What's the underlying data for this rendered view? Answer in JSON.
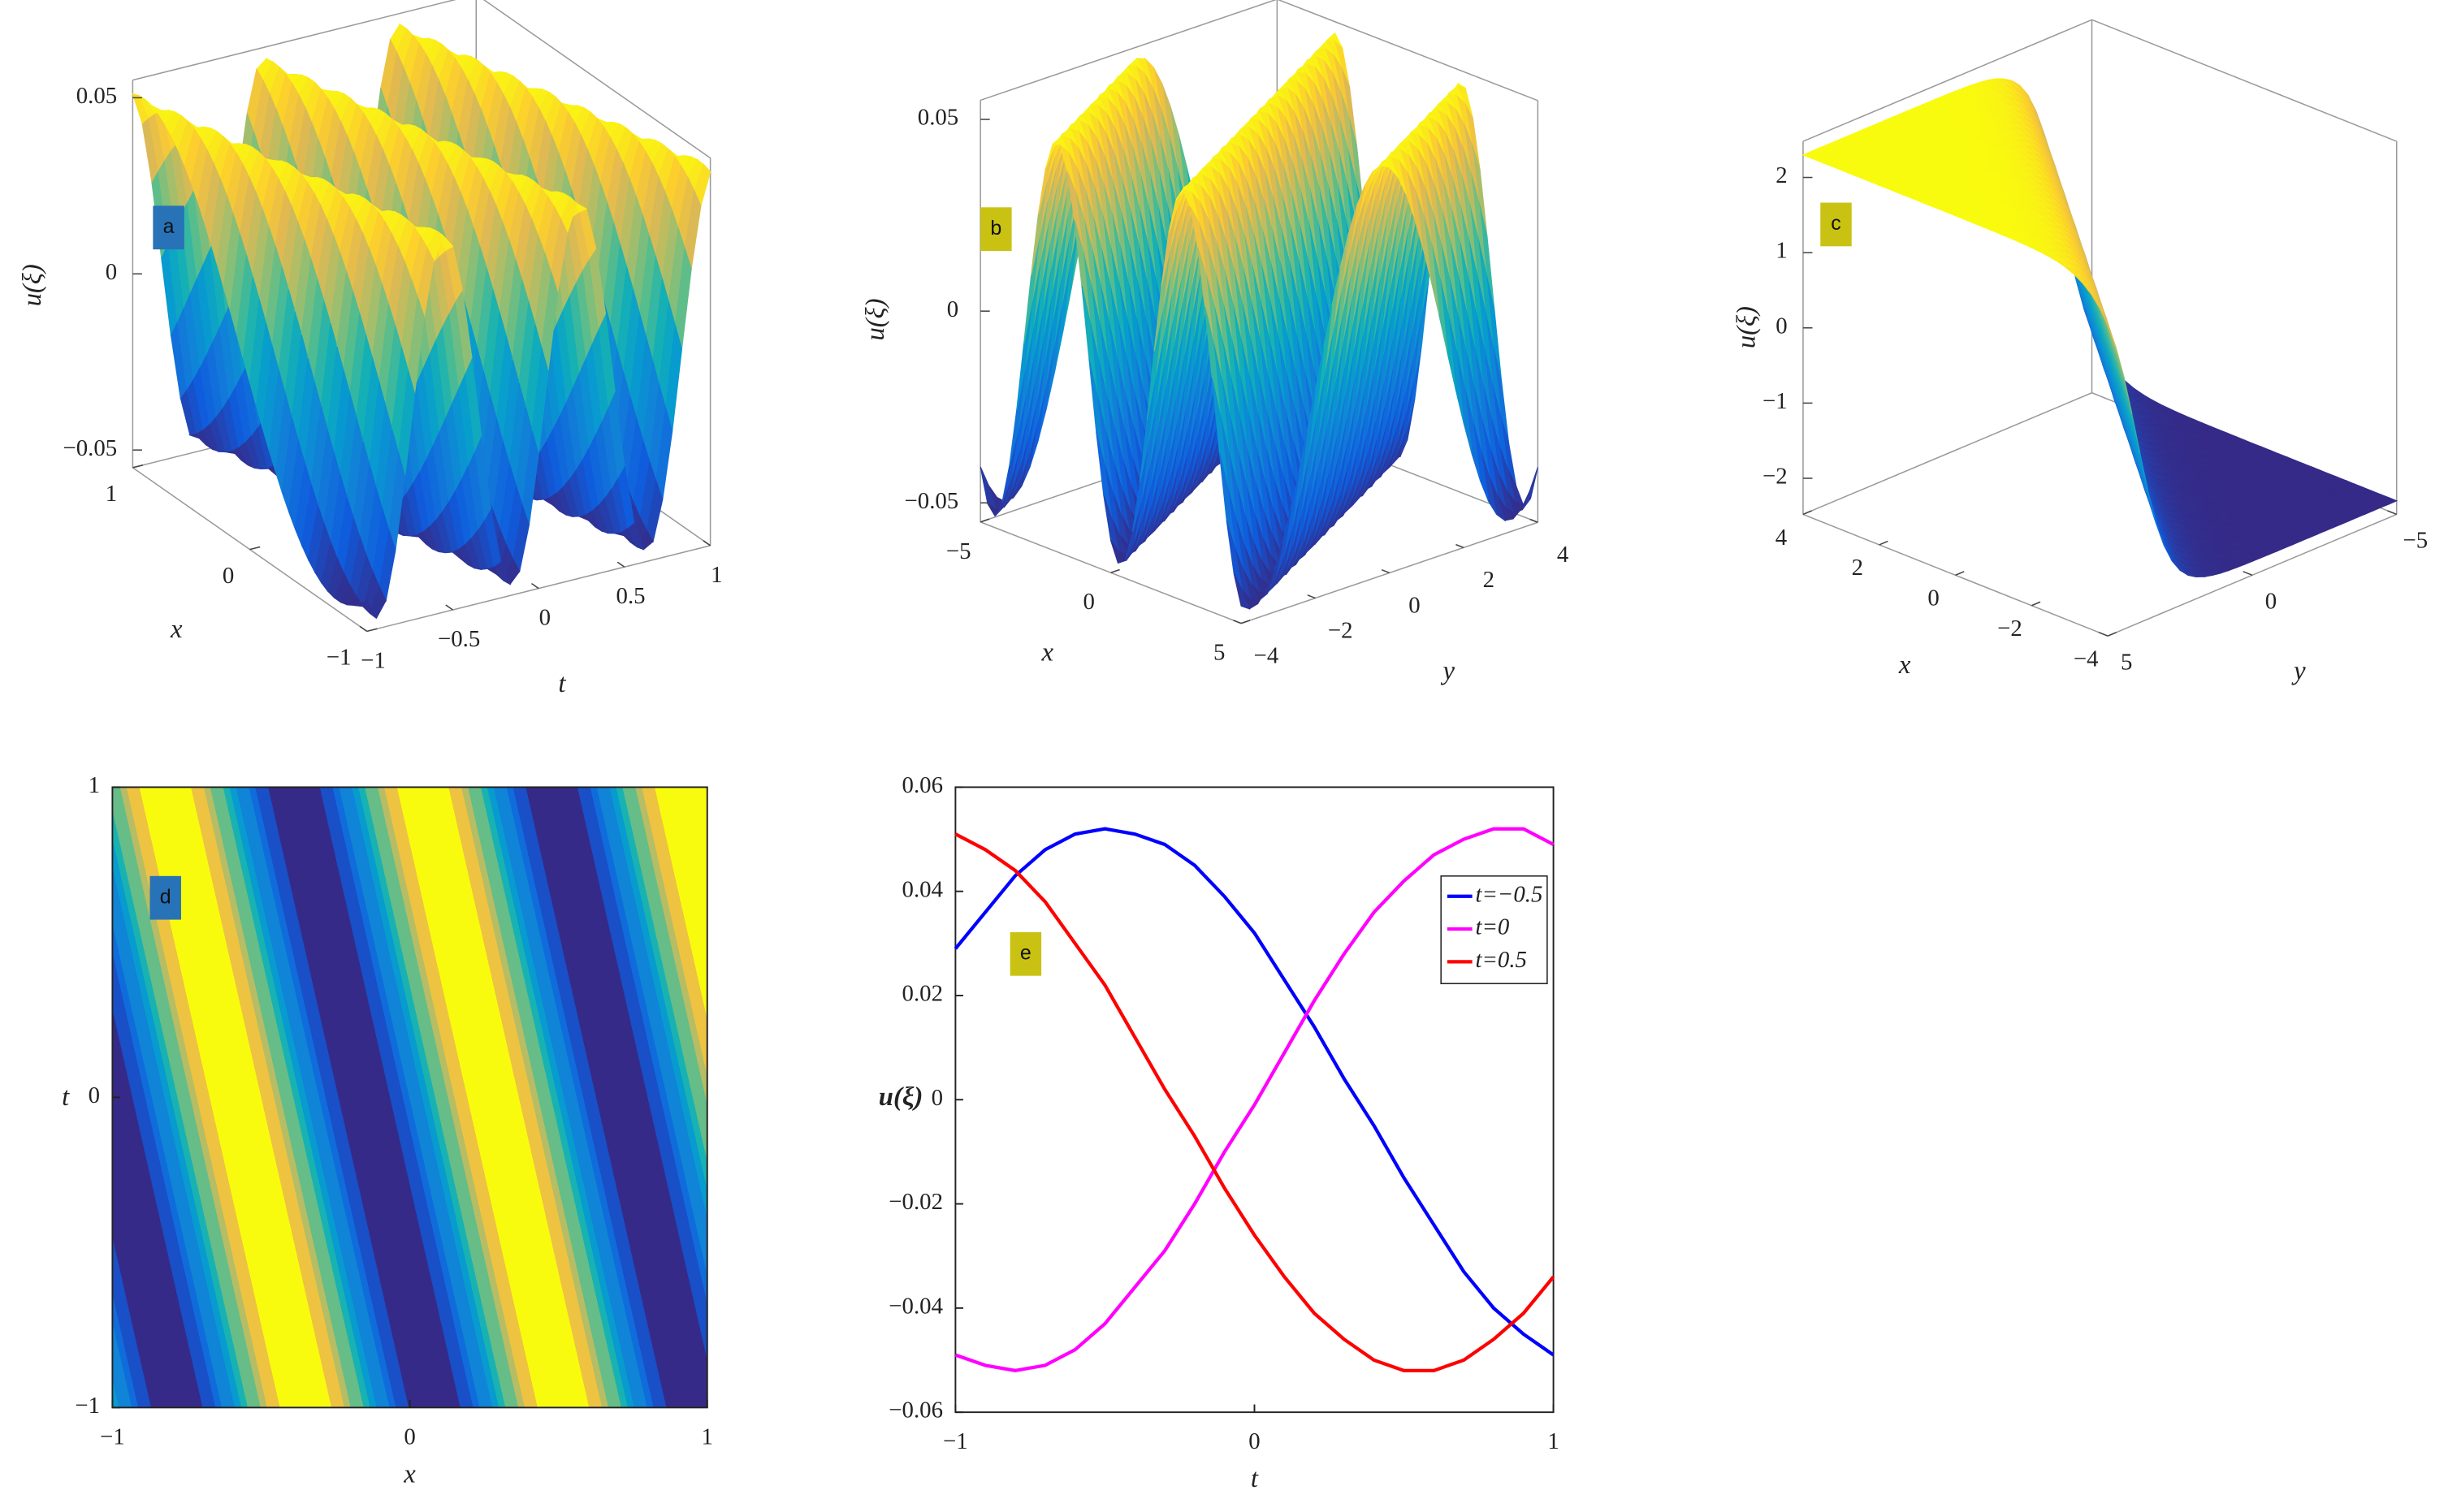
{
  "chart_data": [
    {
      "type": "surface",
      "label": "a",
      "xlabel": "x",
      "ylabel": "t",
      "zlabel": "u(ξ)",
      "xticks": [
        {
          "value": -1,
          "label": "−1"
        },
        0,
        1
      ],
      "yticks": [
        {
          "value": -1,
          "label": "−1"
        },
        {
          "value": -0.5,
          "label": "−0.5"
        },
        0,
        0.5,
        1
      ],
      "zticks": [
        {
          "value": -0.05,
          "label": "−0.05"
        },
        0,
        0.05
      ]
    },
    {
      "type": "surface",
      "label": "b",
      "xlabel": "x",
      "ylabel": "y",
      "zlabel": "u(ξ)",
      "xticks": [
        {
          "value": -5,
          "label": "−5"
        },
        0,
        5
      ],
      "yticks": [
        {
          "value": -4,
          "label": "−4"
        },
        {
          "value": -2,
          "label": "−2"
        },
        0,
        2,
        4
      ],
      "zticks": [
        {
          "value": -0.05,
          "label": "−0.05"
        },
        0,
        0.05
      ]
    },
    {
      "type": "surface",
      "label": "c",
      "xlabel": "x",
      "ylabel": "y",
      "zlabel": "u(ξ)",
      "xticks": [
        {
          "value": -4,
          "label": "−4"
        },
        {
          "value": -2,
          "label": "−2"
        },
        0,
        2,
        4
      ],
      "yticks": [
        {
          "value": -5,
          "label": "−5"
        },
        0,
        5
      ],
      "zticks": [
        {
          "value": -2,
          "label": "−2"
        },
        {
          "value": -1,
          "label": "−1"
        },
        0,
        1,
        2
      ]
    },
    {
      "type": "contour",
      "label": "d",
      "xlabel": "x",
      "ylabel": "t",
      "xlim": [
        -1,
        1
      ],
      "ylim": [
        -1,
        1
      ],
      "xticks": [
        {
          "value": -1,
          "label": "−1"
        },
        0,
        1
      ],
      "yticks": [
        {
          "value": -1,
          "label": "−1"
        },
        0,
        1
      ]
    },
    {
      "type": "line",
      "label": "e",
      "xlabel": "t",
      "ylabel": "u(ξ)",
      "xlim": [
        -1,
        1
      ],
      "ylim": [
        -0.06,
        0.06
      ],
      "xticks": [
        {
          "value": -1,
          "label": "−1"
        },
        0,
        1
      ],
      "yticks": [
        {
          "value": -0.06,
          "label": "−0.06"
        },
        {
          "value": -0.04,
          "label": "−0.04"
        },
        {
          "value": -0.02,
          "label": "−0.02"
        },
        0,
        0.02,
        0.04,
        0.06
      ],
      "x": [
        -1,
        -0.9,
        -0.8,
        -0.7,
        -0.6,
        -0.5,
        -0.4,
        -0.3,
        -0.2,
        -0.1,
        0,
        0.1,
        0.2,
        0.3,
        0.4,
        0.5,
        0.6,
        0.7,
        0.8,
        0.9,
        1
      ],
      "legend": "upper right",
      "series": [
        {
          "name": "t=−0.5",
          "color": "#0000ff",
          "values": [
            0.029,
            0.036,
            0.043,
            0.048,
            0.051,
            0.052,
            0.051,
            0.049,
            0.045,
            0.039,
            0.032,
            0.023,
            0.014,
            0.004,
            -0.005,
            -0.015,
            -0.024,
            -0.033,
            -0.04,
            -0.045,
            -0.049
          ]
        },
        {
          "name": "t=0",
          "color": "#ff00ff",
          "values": [
            -0.049,
            -0.051,
            -0.052,
            -0.051,
            -0.048,
            -0.043,
            -0.036,
            -0.029,
            -0.02,
            -0.01,
            -0.001,
            0.009,
            0.019,
            0.028,
            0.036,
            0.042,
            0.047,
            0.05,
            0.052,
            0.052,
            0.049
          ]
        },
        {
          "name": "t=0.5",
          "color": "#ff0000",
          "values": [
            0.051,
            0.048,
            0.044,
            0.038,
            0.03,
            0.022,
            0.012,
            0.002,
            -0.007,
            -0.017,
            -0.026,
            -0.034,
            -0.041,
            -0.046,
            -0.05,
            -0.052,
            -0.052,
            -0.05,
            -0.046,
            -0.041,
            -0.034
          ]
        }
      ]
    }
  ]
}
